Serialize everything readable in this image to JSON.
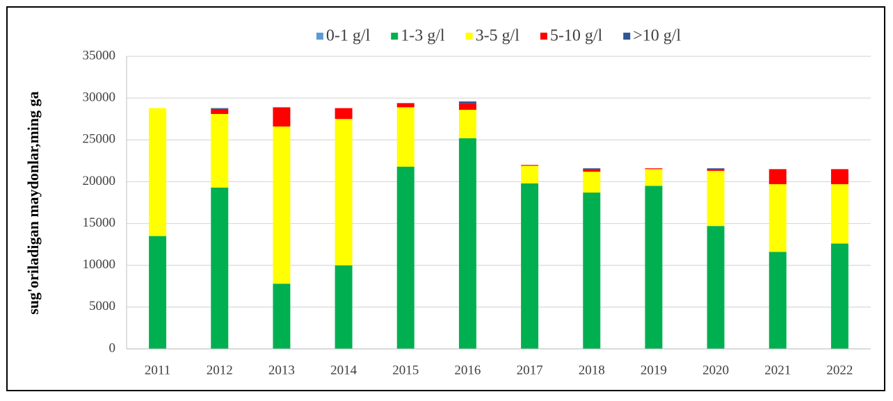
{
  "chart_data": {
    "type": "bar",
    "stacked": true,
    "ylabel": "sug'oriladigan maydonlar,ming ga",
    "categories": [
      "2011",
      "2012",
      "2013",
      "2014",
      "2015",
      "2016",
      "2017",
      "2018",
      "2019",
      "2020",
      "2021",
      "2022"
    ],
    "series": [
      {
        "name": "0-1 g/l",
        "color": "#5b9bd5",
        "values": [
          0,
          0,
          0,
          0,
          0,
          0,
          0,
          0,
          0,
          0,
          0,
          0
        ]
      },
      {
        "name": "1-3 g/l",
        "color": "#00b050",
        "values": [
          13500,
          19300,
          7800,
          10000,
          21800,
          25200,
          19800,
          18700,
          19500,
          14700,
          11600,
          12600
        ]
      },
      {
        "name": "3-5 g/l",
        "color": "#ffff00",
        "values": [
          15300,
          8800,
          18800,
          17500,
          7100,
          3400,
          2100,
          2500,
          2000,
          6600,
          8100,
          7100
        ]
      },
      {
        "name": "5-10 g/l",
        "color": "#ff0000",
        "values": [
          0,
          600,
          2300,
          1300,
          500,
          800,
          100,
          300,
          100,
          200,
          1800,
          1800
        ]
      },
      {
        "name": ">10 g/l",
        "color": "#2f5597",
        "values": [
          0,
          100,
          0,
          0,
          0,
          200,
          0,
          100,
          0,
          100,
          0,
          0
        ]
      }
    ],
    "ylim": [
      0,
      35000
    ],
    "yticks": [
      0,
      5000,
      10000,
      15000,
      20000,
      25000,
      30000,
      35000
    ],
    "grid": true,
    "legend": "top"
  }
}
